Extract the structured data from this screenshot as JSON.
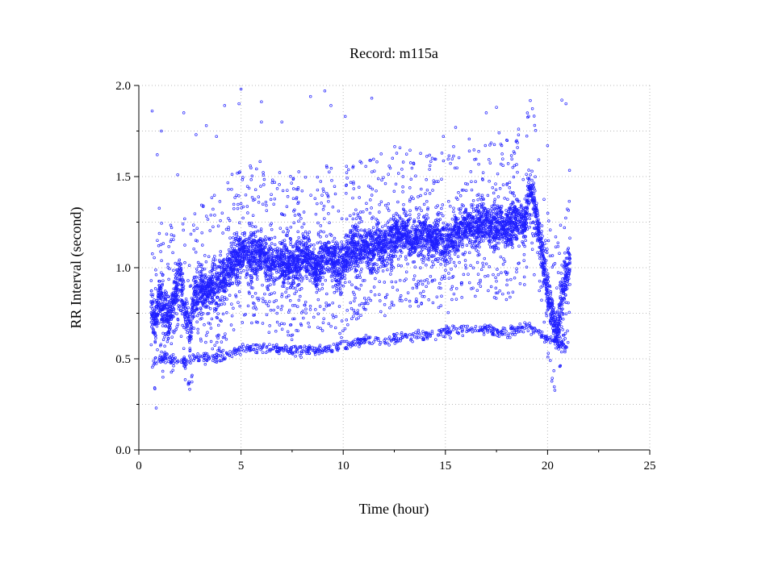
{
  "chart_data": {
    "type": "scatter",
    "title": "Record:  m115a",
    "xlabel": "Time (hour)",
    "ylabel": "RR Interval (second)",
    "xlim": [
      0,
      25
    ],
    "ylim": [
      0,
      2.0
    ],
    "x_ticks": [
      "0",
      "5",
      "10",
      "15",
      "20",
      "25"
    ],
    "y_ticks": [
      "0.0",
      "0.5",
      "1.0",
      "1.5",
      "2.0"
    ],
    "grid": true,
    "marker": "open-circle",
    "color": "#1f1fff",
    "series": [
      {
        "main_band": [
          [
            0.6,
            0.82
          ],
          [
            0.8,
            0.7
          ],
          [
            1.0,
            0.85
          ],
          [
            1.2,
            0.78
          ],
          [
            1.5,
            0.72
          ],
          [
            1.8,
            0.88
          ],
          [
            2.0,
            0.95
          ],
          [
            2.2,
            0.8
          ],
          [
            2.5,
            0.65
          ],
          [
            2.7,
            0.85
          ],
          [
            3.0,
            0.88
          ],
          [
            3.3,
            0.86
          ],
          [
            3.6,
            0.9
          ],
          [
            3.9,
            0.92
          ],
          [
            4.2,
            0.94
          ],
          [
            4.5,
            1.02
          ],
          [
            4.8,
            1.05
          ],
          [
            5.1,
            1.1
          ],
          [
            5.4,
            1.08
          ],
          [
            5.7,
            1.07
          ],
          [
            6.0,
            1.1
          ],
          [
            6.3,
            1.05
          ],
          [
            6.6,
            1.0
          ],
          [
            6.9,
            1.05
          ],
          [
            7.2,
            1.02
          ],
          [
            7.5,
            1.0
          ],
          [
            7.8,
            1.05
          ],
          [
            8.1,
            1.1
          ],
          [
            8.4,
            1.05
          ],
          [
            8.7,
            1.0
          ],
          [
            9.0,
            1.05
          ],
          [
            9.3,
            1.08
          ],
          [
            9.6,
            1.05
          ],
          [
            9.9,
            1.0
          ],
          [
            10.2,
            1.08
          ],
          [
            10.5,
            1.12
          ],
          [
            10.8,
            1.1
          ],
          [
            11.1,
            1.12
          ],
          [
            11.4,
            1.1
          ],
          [
            11.7,
            1.15
          ],
          [
            12.0,
            1.12
          ],
          [
            12.3,
            1.15
          ],
          [
            12.6,
            1.18
          ],
          [
            12.9,
            1.2
          ],
          [
            13.2,
            1.17
          ],
          [
            13.5,
            1.15
          ],
          [
            13.8,
            1.18
          ],
          [
            14.1,
            1.2
          ],
          [
            14.4,
            1.15
          ],
          [
            14.7,
            1.18
          ],
          [
            15.0,
            1.12
          ],
          [
            15.3,
            1.15
          ],
          [
            15.6,
            1.22
          ],
          [
            15.9,
            1.22
          ],
          [
            16.2,
            1.25
          ],
          [
            16.5,
            1.23
          ],
          [
            16.8,
            1.26
          ],
          [
            17.1,
            1.24
          ],
          [
            17.4,
            1.22
          ],
          [
            17.7,
            1.25
          ],
          [
            18.0,
            1.22
          ],
          [
            18.3,
            1.25
          ],
          [
            18.6,
            1.28
          ],
          [
            18.9,
            1.25
          ],
          [
            19.1,
            1.45
          ],
          [
            19.3,
            1.38
          ],
          [
            19.5,
            1.25
          ],
          [
            19.7,
            1.1
          ],
          [
            19.9,
            0.95
          ],
          [
            20.1,
            0.82
          ],
          [
            20.3,
            0.72
          ],
          [
            20.5,
            0.65
          ],
          [
            20.7,
            0.85
          ],
          [
            20.9,
            0.95
          ],
          [
            21.1,
            1.05
          ]
        ],
        "lower_cluster": [
          [
            0.7,
            0.48
          ],
          [
            1.2,
            0.5
          ],
          [
            1.8,
            0.49
          ],
          [
            2.4,
            0.48
          ],
          [
            3.0,
            0.52
          ],
          [
            3.6,
            0.5
          ],
          [
            4.2,
            0.52
          ],
          [
            5.0,
            0.55
          ],
          [
            6.0,
            0.56
          ],
          [
            7.0,
            0.55
          ],
          [
            8.0,
            0.55
          ],
          [
            9.0,
            0.55
          ],
          [
            10.0,
            0.58
          ],
          [
            11.0,
            0.6
          ],
          [
            12.0,
            0.6
          ],
          [
            13.0,
            0.62
          ],
          [
            14.0,
            0.63
          ],
          [
            15.0,
            0.65
          ],
          [
            16.0,
            0.66
          ],
          [
            17.0,
            0.66
          ],
          [
            18.0,
            0.64
          ],
          [
            19.0,
            0.68
          ],
          [
            20.5,
            0.58
          ],
          [
            21.0,
            0.57
          ]
        ],
        "outliers": [
          [
            0.65,
            1.86
          ],
          [
            0.9,
            1.62
          ],
          [
            1.1,
            1.75
          ],
          [
            1.9,
            1.51
          ],
          [
            2.2,
            1.85
          ],
          [
            2.8,
            1.73
          ],
          [
            3.3,
            1.78
          ],
          [
            3.8,
            1.72
          ],
          [
            4.2,
            1.89
          ],
          [
            4.9,
            1.9
          ],
          [
            5.0,
            1.98
          ],
          [
            6.0,
            1.91
          ],
          [
            6.0,
            1.8
          ],
          [
            7.0,
            1.8
          ],
          [
            8.4,
            1.94
          ],
          [
            9.1,
            1.97
          ],
          [
            9.4,
            1.89
          ],
          [
            10.1,
            1.83
          ],
          [
            11.4,
            1.93
          ],
          [
            14.9,
            1.72
          ],
          [
            15.5,
            1.77
          ],
          [
            17.0,
            1.85
          ],
          [
            17.5,
            1.88
          ],
          [
            18.0,
            1.7
          ],
          [
            20.0,
            1.67
          ],
          [
            20.7,
            1.92
          ],
          [
            20.9,
            1.9
          ],
          [
            0.85,
            0.23
          ]
        ]
      }
    ]
  }
}
